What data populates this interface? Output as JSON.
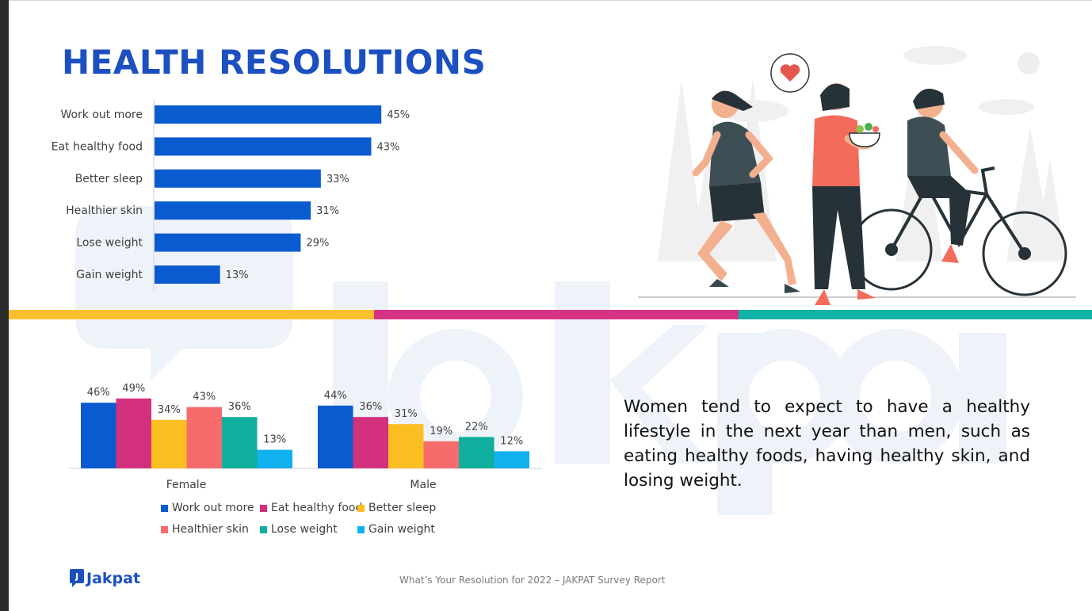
{
  "page": {
    "title": "HEALTH RESOLUTIONS",
    "paragraph": "Women tend to expect to have a healthy lifestyle in the next year than men, such as eating healthy foods, having healthy skin, and losing weight.",
    "footer": "What’s Your Resolution for 2022 – JAKPAT Survey Report",
    "logo_text": "Jakpat",
    "watermark_text": "Jakpat",
    "stripe_colors": [
      "#fbc02d",
      "#d63384",
      "#11b3a6"
    ]
  },
  "chart_data": [
    {
      "type": "bar",
      "orientation": "horizontal",
      "categories": [
        "Work out more",
        "Eat healthy food",
        "Better sleep",
        "Healthier skin",
        "Lose weight",
        "Gain weight"
      ],
      "values": [
        45,
        43,
        33,
        31,
        29,
        13
      ],
      "value_labels": [
        "45%",
        "43%",
        "33%",
        "31%",
        "29%",
        "13%"
      ],
      "unit": "%",
      "xlim": [
        0,
        100
      ],
      "color": "#0a5bd0",
      "grid": false,
      "title": "",
      "xlabel": "",
      "ylabel": ""
    },
    {
      "type": "bar",
      "orientation": "vertical",
      "categories": [
        "Female",
        "Male"
      ],
      "series": [
        {
          "name": "Work out more",
          "values": [
            46,
            44
          ],
          "labels": [
            "46%",
            "44%"
          ],
          "color": "#0a5bd0"
        },
        {
          "name": "Eat healthy food",
          "values": [
            49,
            36
          ],
          "labels": [
            "49%",
            "36%"
          ],
          "color": "#d3307e"
        },
        {
          "name": "Better sleep",
          "values": [
            34,
            31
          ],
          "labels": [
            "34%",
            "31%"
          ],
          "color": "#fbbf24"
        },
        {
          "name": "Healthier skin",
          "values": [
            43,
            19
          ],
          "labels": [
            "43%",
            "19%"
          ],
          "color": "#f66b6b"
        },
        {
          "name": "Lose weight",
          "values": [
            36,
            22
          ],
          "labels": [
            "36%",
            "22%"
          ],
          "color": "#0fae9e"
        },
        {
          "name": "Gain weight",
          "values": [
            13,
            12
          ],
          "labels": [
            "13%",
            "12%"
          ],
          "color": "#11b0ee"
        }
      ],
      "unit": "%",
      "ylim": [
        0,
        100
      ],
      "legend": "bottom",
      "grid": false,
      "title": "",
      "xlabel": "",
      "ylabel": ""
    }
  ]
}
